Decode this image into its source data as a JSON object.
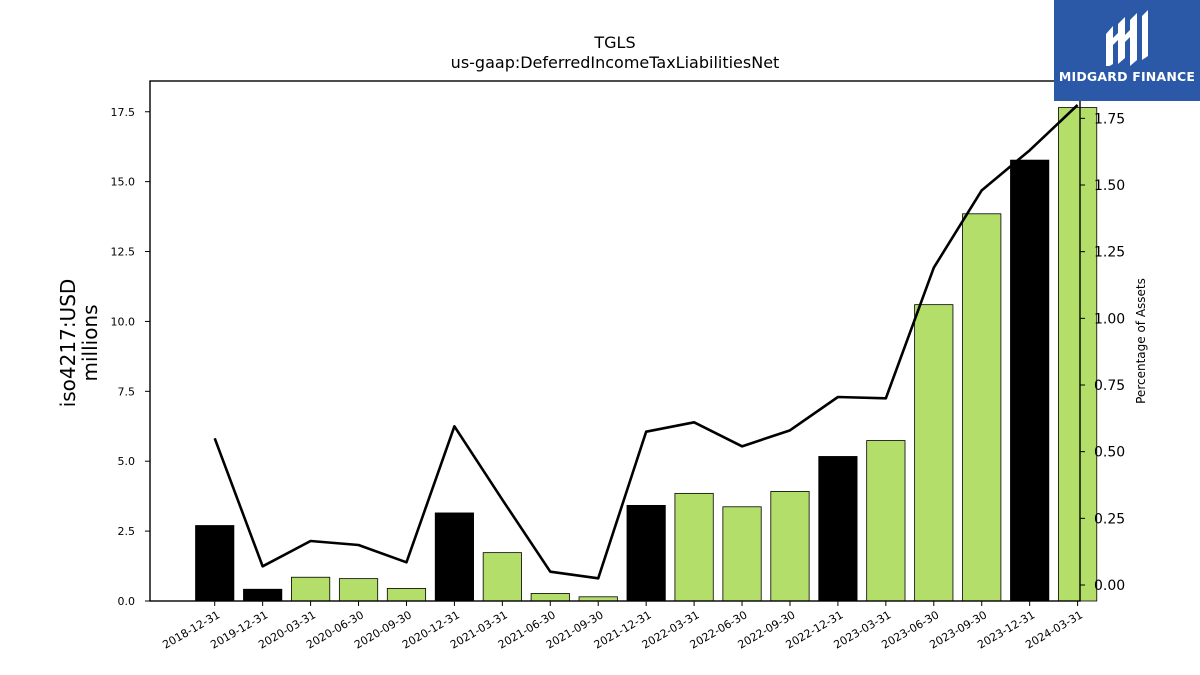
{
  "brand": {
    "name": "MIDGARD FINANCE",
    "background": "#2b59a8",
    "text_color": "#ffffff"
  },
  "chart_data": {
    "type": "bar",
    "title": "TGLS",
    "subtitle": "us-gaap:DeferredIncomeTaxLiabilitiesNet",
    "ylabel": "iso4217:USD\nmillions",
    "y2label": "Percentage of Assets",
    "ylim": [
      0,
      18.6
    ],
    "y2lim": [
      -0.06,
      1.89
    ],
    "yticks": [
      "0.0",
      "2.5",
      "5.0",
      "7.5",
      "10.0",
      "12.5",
      "15.0",
      "17.5"
    ],
    "y2ticks": [
      "0.00",
      "0.25",
      "0.50",
      "0.75",
      "1.00",
      "1.25",
      "1.50",
      "1.75"
    ],
    "categories": [
      "2018-12-31",
      "2019-12-31",
      "2020-03-31",
      "2020-06-30",
      "2020-09-30",
      "2020-12-31",
      "2021-03-31",
      "2021-06-30",
      "2021-09-30",
      "2021-12-31",
      "2022-03-31",
      "2022-06-30",
      "2022-09-30",
      "2022-12-31",
      "2023-03-31",
      "2023-06-30",
      "2023-09-30",
      "2023-12-31",
      "2024-03-31"
    ],
    "series": [
      {
        "kind": "bar",
        "values": [
          2.7,
          0.42,
          0.85,
          0.8,
          0.45,
          3.15,
          1.73,
          0.27,
          0.15,
          3.42,
          3.85,
          3.37,
          3.92,
          5.17,
          5.74,
          10.6,
          13.85,
          15.77,
          17.65
        ],
        "colors": [
          "#000000",
          "#000000",
          "#b3de69",
          "#b3de69",
          "#b3de69",
          "#000000",
          "#b3de69",
          "#b3de69",
          "#b3de69",
          "#000000",
          "#b3de69",
          "#b3de69",
          "#b3de69",
          "#000000",
          "#b3de69",
          "#b3de69",
          "#b3de69",
          "#000000",
          "#b3de69"
        ]
      },
      {
        "kind": "line",
        "axis": "right",
        "color": "#000000",
        "values": [
          0.55,
          0.07,
          0.165,
          0.15,
          0.085,
          0.595,
          0.32,
          0.05,
          0.025,
          0.575,
          0.61,
          0.52,
          0.58,
          0.705,
          0.7,
          1.19,
          1.48,
          1.63,
          1.8
        ]
      }
    ],
    "grid": false
  }
}
